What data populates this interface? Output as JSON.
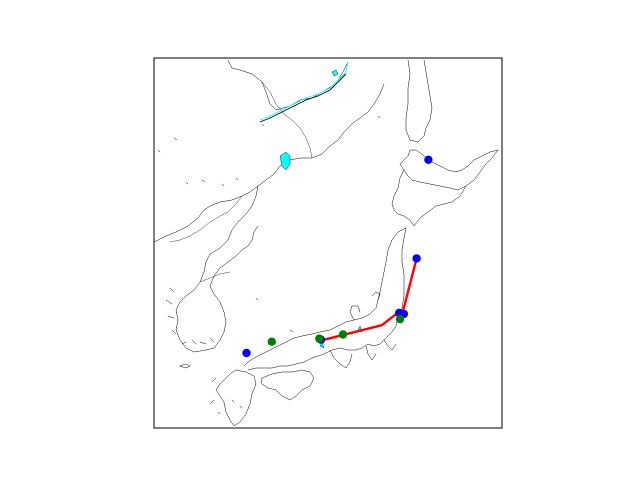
{
  "map": {
    "projection": "equirectangular",
    "extent": {
      "lon_min": 124.0,
      "lon_max": 146.0,
      "lat_min": 30.0,
      "lat_max": 48.0
    },
    "colors": {
      "land_outline": "#000000",
      "water": "#00ffff",
      "route_line": "#ff0000",
      "marker_blue": "#0000ff",
      "marker_green": "#008000"
    },
    "route": {
      "color": "#ff0000",
      "points": [
        {
          "lon": 134.55,
          "lat": 34.25
        },
        {
          "lon": 138.4,
          "lat": 35.0
        },
        {
          "lon": 139.4,
          "lat": 35.6
        },
        {
          "lon": 139.7,
          "lat": 35.55
        },
        {
          "lon": 140.6,
          "lat": 38.25
        }
      ]
    },
    "markers": [
      {
        "lon": 140.6,
        "lat": 38.25,
        "color": "#0000ff"
      },
      {
        "lon": 141.35,
        "lat": 43.05,
        "color": "#0000ff"
      },
      {
        "lon": 139.5,
        "lat": 35.6,
        "color": "#0000ff"
      },
      {
        "lon": 139.8,
        "lat": 35.55,
        "color": "#0000ff"
      },
      {
        "lon": 134.55,
        "lat": 34.3,
        "color": "#0000ff"
      },
      {
        "lon": 129.85,
        "lat": 33.65,
        "color": "#0000ff"
      },
      {
        "lon": 131.45,
        "lat": 34.2,
        "color": "#008000"
      },
      {
        "lon": 134.45,
        "lat": 34.35,
        "color": "#008000"
      },
      {
        "lon": 135.95,
        "lat": 34.55,
        "color": "#008000"
      },
      {
        "lon": 139.55,
        "lat": 35.3,
        "color": "#008000"
      }
    ]
  }
}
